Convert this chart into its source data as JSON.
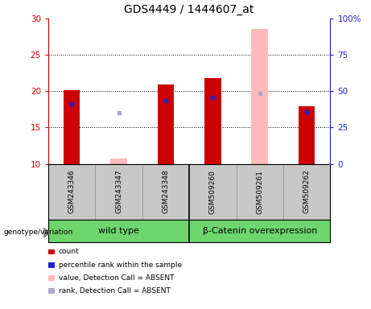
{
  "title": "GDS4449 / 1444607_at",
  "samples": [
    "GSM243346",
    "GSM243347",
    "GSM243348",
    "GSM509260",
    "GSM509261",
    "GSM509262"
  ],
  "groups": [
    {
      "label": "wild type",
      "color": "#7FD47F"
    },
    {
      "label": "β-Catenin overexpression",
      "color": "#7FD47F"
    }
  ],
  "ylim_left": [
    10,
    30
  ],
  "ylim_right": [
    0,
    100
  ],
  "yticks_left": [
    10,
    15,
    20,
    25,
    30
  ],
  "yticks_right": [
    0,
    25,
    50,
    75,
    100
  ],
  "yticklabels_right": [
    "0",
    "25",
    "50",
    "75",
    "100%"
  ],
  "bar_width": 0.35,
  "red_values": [
    20.1,
    null,
    20.9,
    21.8,
    null,
    17.9
  ],
  "blue_values": [
    18.3,
    null,
    18.7,
    19.1,
    null,
    17.2
  ],
  "pink_bar_values": [
    null,
    10.7,
    null,
    null,
    28.6,
    null
  ],
  "light_purple_values": [
    null,
    17.0,
    null,
    null,
    19.7,
    null
  ],
  "red_color": "#cc0000",
  "blue_color": "#2222cc",
  "pink_color": "#ffbbbb",
  "light_purple_color": "#aaaacc",
  "plot_bg": "#ffffff",
  "sample_bg": "#c8c8c8",
  "group_bg": "#6ED66E",
  "left_axis_color": "#cc0000",
  "right_axis_color": "#2222cc",
  "legend_items": [
    {
      "color": "#cc0000",
      "label": "count"
    },
    {
      "color": "#2222cc",
      "label": "percentile rank within the sample"
    },
    {
      "color": "#ffbbbb",
      "label": "value, Detection Call = ABSENT"
    },
    {
      "color": "#aaaacc",
      "label": "rank, Detection Call = ABSENT"
    }
  ]
}
